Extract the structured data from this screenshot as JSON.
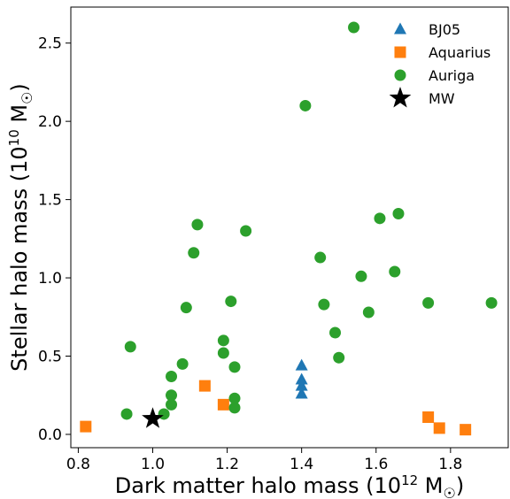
{
  "chart_data": {
    "type": "scatter",
    "xlabel": "Dark matter halo mass (10",
    "xlabel_exp": "12",
    "xlabel_unit": " M",
    "xlabel_sub": "☉",
    "xlabel_close": ")",
    "ylabel": "Stellar halo mass (10",
    "ylabel_exp": "10",
    "ylabel_unit": " M",
    "ylabel_sub": "☉",
    "ylabel_close": ")",
    "xlim": [
      0.78,
      1.955
    ],
    "ylim": [
      -0.085,
      2.73
    ],
    "xticks": [
      0.8,
      1.0,
      1.2,
      1.4,
      1.6,
      1.8
    ],
    "xtick_labels": [
      "0.8",
      "1.0",
      "1.2",
      "1.4",
      "1.6",
      "1.8"
    ],
    "yticks": [
      0.0,
      0.5,
      1.0,
      1.5,
      2.0,
      2.5
    ],
    "ytick_labels": [
      "0.0",
      "0.5",
      "1.0",
      "1.5",
      "2.0",
      "2.5"
    ],
    "grid": false,
    "legend_position": "top-right",
    "series": [
      {
        "name": "BJ05",
        "marker": "triangle",
        "color": "#1f77b4",
        "points": [
          [
            1.4,
            0.44
          ],
          [
            1.4,
            0.35
          ],
          [
            1.4,
            0.31
          ],
          [
            1.4,
            0.26
          ]
        ]
      },
      {
        "name": "Aquarius",
        "marker": "square",
        "color": "#ff7f0e",
        "points": [
          [
            0.82,
            0.05
          ],
          [
            1.14,
            0.31
          ],
          [
            1.19,
            0.19
          ],
          [
            1.74,
            0.11
          ],
          [
            1.77,
            0.04
          ],
          [
            1.84,
            0.03
          ]
        ]
      },
      {
        "name": "Auriga",
        "marker": "circle",
        "color": "#2ca02c",
        "points": [
          [
            0.93,
            0.13
          ],
          [
            0.94,
            0.56
          ],
          [
            1.03,
            0.13
          ],
          [
            1.05,
            0.37
          ],
          [
            1.05,
            0.25
          ],
          [
            1.05,
            0.19
          ],
          [
            1.08,
            0.45
          ],
          [
            1.09,
            0.81
          ],
          [
            1.11,
            1.16
          ],
          [
            1.12,
            1.34
          ],
          [
            1.19,
            0.6
          ],
          [
            1.19,
            0.52
          ],
          [
            1.21,
            0.85
          ],
          [
            1.22,
            0.43
          ],
          [
            1.22,
            0.23
          ],
          [
            1.22,
            0.17
          ],
          [
            1.25,
            1.3
          ],
          [
            1.41,
            2.1
          ],
          [
            1.45,
            1.13
          ],
          [
            1.46,
            0.83
          ],
          [
            1.49,
            0.65
          ],
          [
            1.5,
            0.49
          ],
          [
            1.54,
            2.6
          ],
          [
            1.56,
            1.01
          ],
          [
            1.58,
            0.78
          ],
          [
            1.61,
            1.38
          ],
          [
            1.65,
            1.04
          ],
          [
            1.66,
            1.41
          ],
          [
            1.74,
            0.84
          ],
          [
            1.91,
            0.84
          ]
        ]
      },
      {
        "name": "MW",
        "marker": "star",
        "color": "#000000",
        "points": [
          [
            1.0,
            0.1
          ]
        ]
      }
    ]
  }
}
